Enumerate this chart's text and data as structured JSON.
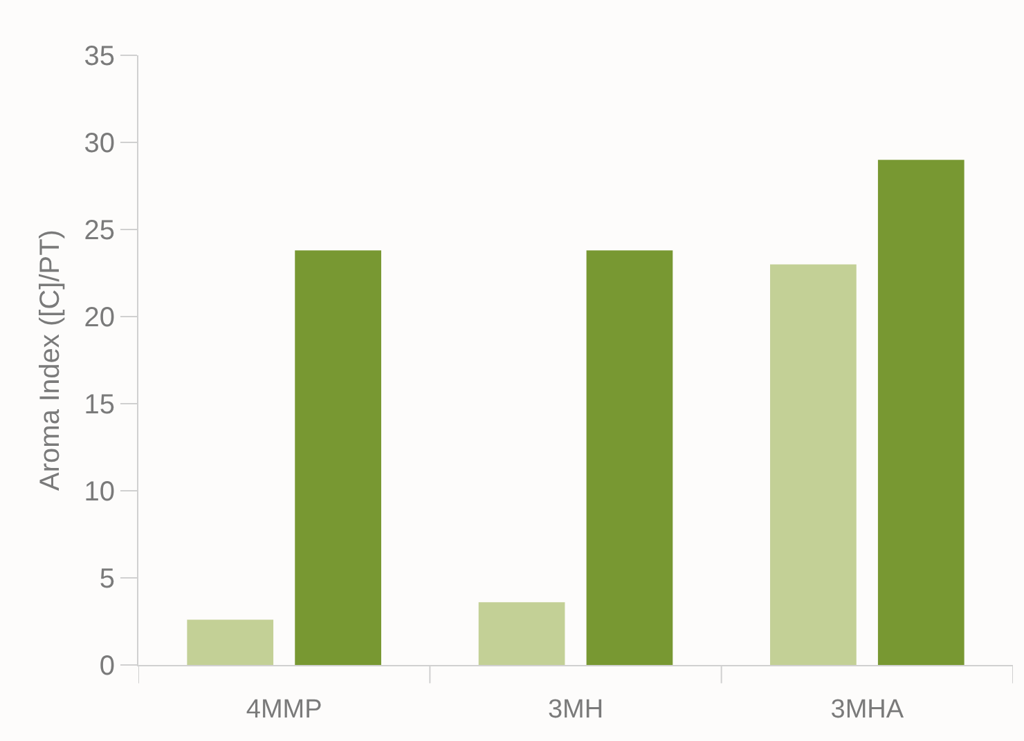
{
  "chart_data": {
    "type": "bar",
    "ylabel": "Aroma Index ([C]/PT)",
    "categories": [
      "4MMP",
      "3MH",
      "3MHA"
    ],
    "series": [
      {
        "color": "#c3d096",
        "values": [
          2.6,
          3.6,
          23
        ]
      },
      {
        "color": "#789832",
        "values": [
          23.8,
          23.8,
          29
        ]
      }
    ],
    "ylim": [
      0,
      35
    ],
    "yticks": [
      0,
      5,
      10,
      15,
      20,
      25,
      30,
      35
    ],
    "grid": false
  }
}
